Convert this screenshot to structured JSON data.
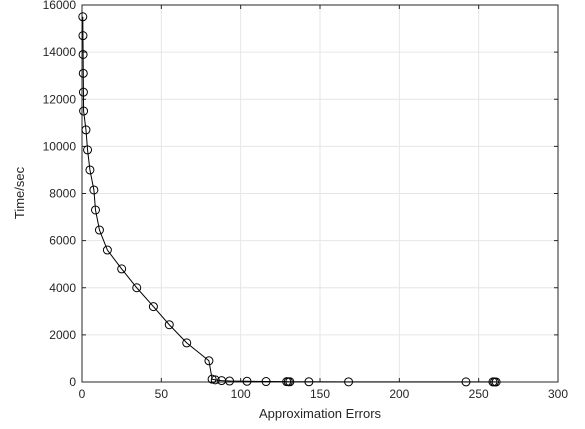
{
  "chart_data": {
    "type": "line",
    "title": "",
    "xlabel": "Approximation Errors",
    "ylabel": "Time/sec",
    "xlim": [
      0,
      300
    ],
    "ylim": [
      0,
      16000
    ],
    "xticks": [
      0,
      50,
      100,
      150,
      200,
      250,
      300
    ],
    "yticks": [
      0,
      2000,
      4000,
      6000,
      8000,
      10000,
      12000,
      14000,
      16000
    ],
    "grid": true,
    "marker": "circle",
    "line_color": "#000000",
    "series": [
      {
        "x": [
          0.5,
          0.6,
          0.7,
          0.8,
          0.9,
          1.0,
          2.5,
          3.5,
          5,
          7.5,
          8.5,
          11,
          16,
          25,
          34.5,
          45,
          55,
          66,
          80,
          82,
          84,
          88,
          93,
          104,
          116,
          129,
          130,
          131,
          143,
          168,
          242,
          259,
          260,
          261
        ],
        "y": [
          15500,
          14700,
          13900,
          13100,
          12300,
          11500,
          10700,
          9850,
          9000,
          8150,
          7300,
          6450,
          5600,
          4800,
          4000,
          3200,
          2430,
          1660,
          900,
          120,
          90,
          60,
          40,
          30,
          20,
          15,
          12,
          10,
          8,
          6,
          5,
          4,
          3,
          2
        ]
      }
    ]
  }
}
